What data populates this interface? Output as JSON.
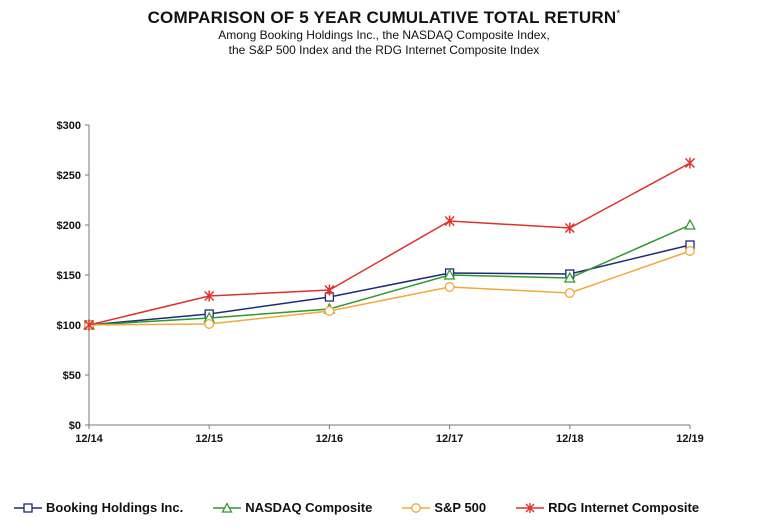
{
  "chart_data": {
    "type": "line",
    "title": "COMPARISON OF 5 YEAR CUMULATIVE TOTAL RETURN",
    "title_mark": "*",
    "subtitle_lines": [
      "Among Booking Holdings Inc., the NASDAQ Composite Index,",
      "the S&P 500 Index and the RDG Internet Composite Index"
    ],
    "categories": [
      "12/14",
      "12/15",
      "12/16",
      "12/17",
      "12/18",
      "12/19"
    ],
    "ylim": [
      0,
      300
    ],
    "yticks": [
      0,
      50,
      100,
      150,
      200,
      250,
      300
    ],
    "ytick_labels": [
      "$0",
      "$50",
      "$100",
      "$150",
      "$200",
      "$250",
      "$300"
    ],
    "grid": false,
    "legend_position": "bottom",
    "series": [
      {
        "name": "Booking Holdings Inc.",
        "values": [
          100,
          111,
          128,
          152,
          151,
          180
        ],
        "color": "#1f2a7a",
        "marker": "square"
      },
      {
        "name": "NASDAQ Composite",
        "values": [
          100,
          107,
          116,
          150,
          147,
          200
        ],
        "color": "#2e9a2e",
        "marker": "triangle"
      },
      {
        "name": "S&P 500",
        "values": [
          100,
          101,
          114,
          138,
          132,
          174
        ],
        "color": "#f2a93b",
        "marker": "circle"
      },
      {
        "name": "RDG Internet Composite",
        "values": [
          100,
          129,
          135,
          204,
          197,
          262
        ],
        "color": "#e0302b",
        "marker": "star"
      }
    ]
  }
}
